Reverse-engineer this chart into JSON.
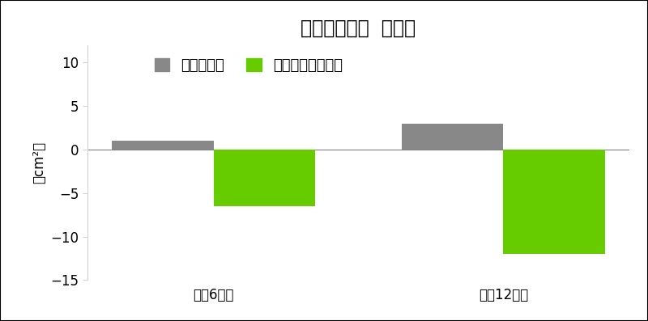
{
  "title": "内臓脂肪面積  変化量",
  "ylabel": "（cm²）",
  "categories": [
    "摄匉6週後",
    "摄匉12週後"
  ],
  "placebo_values": [
    1.0,
    3.0
  ],
  "botanbofuu_values": [
    -6.5,
    -12.0
  ],
  "placebo_color": "#888888",
  "botanbofuu_color": "#66cc00",
  "ylim": [
    -15,
    12
  ],
  "yticks": [
    -15,
    -10,
    -5,
    0,
    5,
    10
  ],
  "legend_placebo": "プラセボ群",
  "legend_botanbofuu": "ボタンボウフウ群",
  "bar_width": 0.35,
  "title_fontsize": 17,
  "label_fontsize": 12,
  "tick_fontsize": 12,
  "legend_fontsize": 13,
  "background_color": "#ffffff"
}
